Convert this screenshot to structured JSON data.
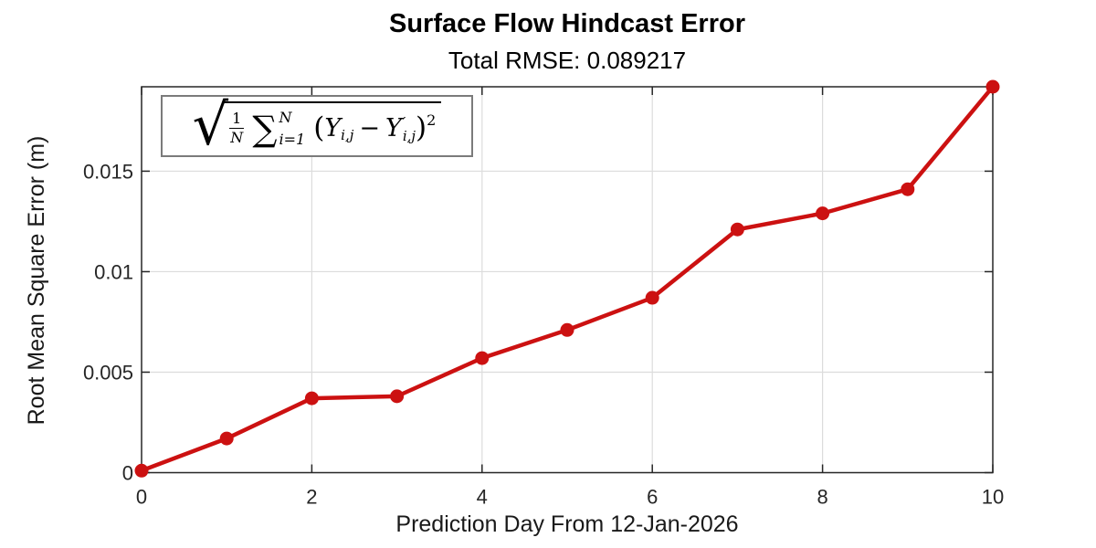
{
  "header": {
    "title": "Surface Flow Hindcast Error",
    "subtitle": "Total RMSE: 0.089217"
  },
  "axes": {
    "xlabel": "Prediction Day From 12-Jan-2026",
    "ylabel": "Root Mean Square Error (m)"
  },
  "formula": {
    "radical": "√",
    "frac_num": "1",
    "frac_den": "N",
    "sigma": "∑",
    "sum_sup": "N",
    "sum_sub": "i=1",
    "lparen": "(",
    "y1": "Y",
    "y1_sub": "i,j",
    "minus": "−",
    "y2": "Y",
    "y2_sup": "′",
    "y2_sub": "i,j",
    "rparen": ")",
    "power": "2"
  },
  "colors": {
    "line": "#CC1111",
    "marker": "#CC1111",
    "grid": "#DCDCDC",
    "axis": "#262626",
    "tick_text": "#262626",
    "box_border": "#7B7B7B"
  },
  "chart_data": {
    "type": "line",
    "title": "Surface Flow Hindcast Error",
    "subtitle": "Total RMSE: 0.089217",
    "total_rmse": 0.089217,
    "xlabel": "Prediction Day From 12-Jan-2026",
    "ylabel": "Root Mean Square Error (m)",
    "x": [
      0,
      1,
      2,
      3,
      4,
      5,
      6,
      7,
      8,
      9,
      10
    ],
    "y": [
      0.0001,
      0.0017,
      0.0037,
      0.0038,
      0.0057,
      0.0071,
      0.0087,
      0.0121,
      0.0129,
      0.0141,
      0.0192
    ],
    "xlim": [
      0,
      10
    ],
    "ylim": [
      0,
      0.0192
    ],
    "xticks": [
      0,
      2,
      4,
      6,
      8,
      10
    ],
    "xtick_labels": [
      "0",
      "2",
      "4",
      "6",
      "8",
      "10"
    ],
    "yticks": [
      0,
      0.005,
      0.01,
      0.015
    ],
    "ytick_labels": [
      "0",
      "0.005",
      "0.01",
      "0.015"
    ],
    "grid": true,
    "legend": "none",
    "line_color": "#CC1111",
    "marker": "filled-circle",
    "annotation": "sqrt((1/N) * sum_{i=1}^{N} (Y_ij - Y'_ij)^2)"
  }
}
